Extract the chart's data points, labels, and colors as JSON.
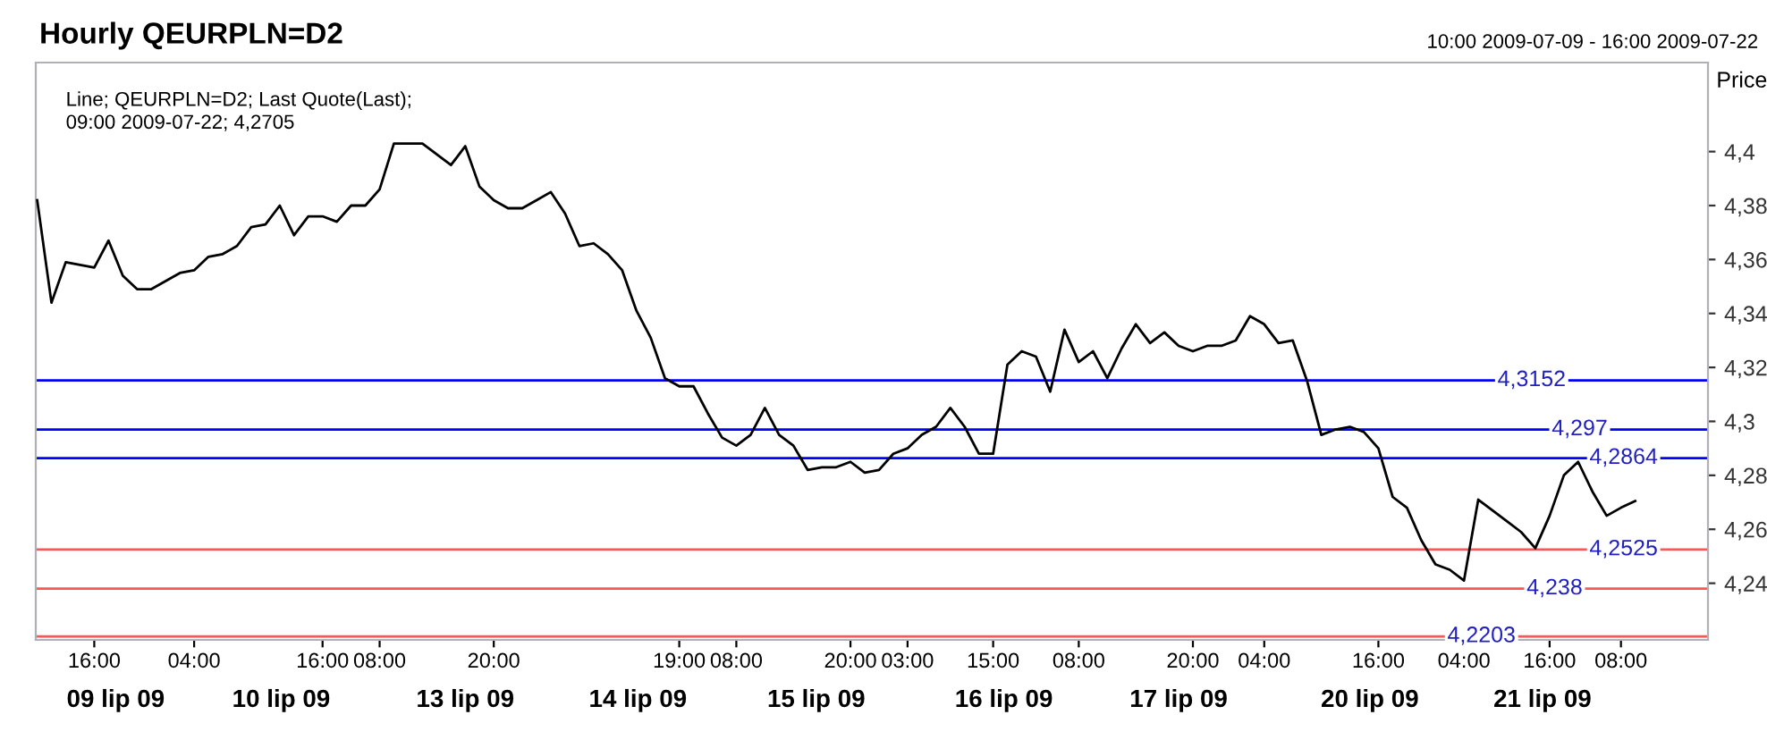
{
  "chart_data": {
    "type": "line",
    "title": "Hourly QEURPLN=D2",
    "subtitle": "10:00 2009-07-09 - 16:00 2009-07-22",
    "ylabel": "Price",
    "annotations": [
      "Line; QEURPLN=D2; Last Quote(Last);\n09:00 2009-07-22; 4,2705",
      "09 lip 09",
      "10 lip 09",
      "13 lip 09",
      "14 lip 09",
      "15 lip 09",
      "16 lip 09",
      "17 lip 09",
      "20 lip 09",
      "21 lip 09"
    ],
    "categories": [
      null,
      null,
      null,
      null,
      "16:00",
      null,
      null,
      null,
      null,
      null,
      null,
      "04:00",
      null,
      null,
      null,
      null,
      null,
      null,
      null,
      null,
      "16:00",
      null,
      null,
      null,
      "08:00",
      null,
      null,
      null,
      null,
      null,
      null,
      null,
      "20:00",
      null,
      null,
      null,
      null,
      null,
      null,
      null,
      null,
      null,
      null,
      null,
      null,
      "19:00",
      null,
      null,
      null,
      "08:00",
      null,
      null,
      null,
      null,
      null,
      null,
      null,
      "20:00",
      null,
      null,
      null,
      "03:00",
      null,
      null,
      null,
      null,
      null,
      "15:00",
      null,
      null,
      null,
      null,
      null,
      "08:00",
      null,
      null,
      null,
      null,
      null,
      null,
      null,
      "20:00",
      null,
      null,
      null,
      null,
      "04:00",
      null,
      null,
      null,
      null,
      null,
      null,
      null,
      "16:00",
      null,
      null,
      null,
      null,
      null,
      "04:00",
      null,
      null,
      null,
      null,
      null,
      "16:00",
      null,
      null,
      null,
      null,
      "08:00",
      null
    ],
    "series": [
      {
        "color": "#000000",
        "values": [
          4.382,
          4.344,
          4.359,
          4.358,
          4.357,
          4.367,
          4.354,
          4.349,
          4.349,
          4.352,
          4.355,
          4.356,
          4.361,
          4.362,
          4.365,
          4.372,
          4.373,
          4.38,
          4.369,
          4.376,
          4.376,
          4.374,
          4.38,
          4.38,
          4.386,
          4.403,
          4.403,
          4.403,
          4.399,
          4.395,
          4.402,
          4.387,
          4.382,
          4.379,
          4.379,
          4.382,
          4.385,
          4.377,
          4.365,
          4.366,
          4.362,
          4.356,
          4.341,
          4.331,
          4.316,
          4.313,
          4.313,
          4.303,
          4.294,
          4.291,
          4.295,
          4.305,
          4.295,
          4.291,
          4.282,
          4.283,
          4.283,
          4.285,
          4.281,
          4.282,
          4.288,
          4.29,
          4.295,
          4.298,
          4.305,
          4.298,
          4.288,
          4.288,
          4.321,
          4.326,
          4.324,
          4.311,
          4.334,
          4.322,
          4.326,
          4.316,
          4.327,
          4.336,
          4.329,
          4.333,
          4.328,
          4.326,
          4.328,
          4.328,
          4.33,
          4.339,
          4.336,
          4.329,
          4.33,
          4.315,
          4.295,
          4.297,
          4.298,
          4.296,
          4.29,
          4.272,
          4.268,
          4.256,
          4.247,
          4.245,
          4.241,
          4.271,
          4.267,
          4.263,
          4.259,
          4.253,
          4.265,
          4.28,
          4.285,
          4.274,
          4.265,
          4.268,
          4.2705
        ]
      }
    ],
    "ylim": [
      4.219,
      4.433
    ],
    "yticks": [
      {
        "value": 4.24,
        "label": "4,24"
      },
      {
        "value": 4.26,
        "label": "4,26"
      },
      {
        "value": 4.28,
        "label": "4,28"
      },
      {
        "value": 4.3,
        "label": "4,3"
      },
      {
        "value": 4.32,
        "label": "4,32"
      },
      {
        "value": 4.34,
        "label": "4,34"
      },
      {
        "value": 4.36,
        "label": "4,36"
      },
      {
        "value": 4.38,
        "label": "4,38"
      },
      {
        "value": 4.4,
        "label": "4,4"
      }
    ],
    "ref_lines": [
      {
        "axis": "y",
        "value": 4.3152,
        "label": "4,3152",
        "color": "#0000ff"
      },
      {
        "axis": "y",
        "value": 4.297,
        "label": "4,297",
        "color": "#0000ff"
      },
      {
        "axis": "y",
        "value": 4.2864,
        "label": "4,2864",
        "color": "#0000ff"
      },
      {
        "axis": "y",
        "value": 4.2525,
        "label": "4,2525",
        "color": "#ff5555"
      },
      {
        "axis": "y",
        "value": 4.238,
        "label": "4,238",
        "color": "#ff5555"
      },
      {
        "axis": "y",
        "value": 4.2203,
        "label": "4,2203",
        "color": "#ff5555"
      }
    ],
    "grid": false,
    "legend": false,
    "marker": "none",
    "line_style": "solid"
  }
}
